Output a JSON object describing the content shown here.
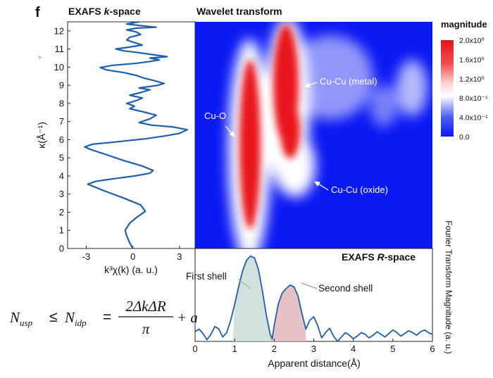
{
  "panel_label": "f",
  "equation": {
    "lhs": "N",
    "lhs_sub": "usp",
    "rel": "≤",
    "rhs": "N",
    "rhs_sub": "idp",
    "eq": "=",
    "numerator": "2ΔkΔR",
    "denominator": "π",
    "tail": "+ a"
  },
  "chart_data": [
    {
      "type": "line",
      "title": "EXAFS k-space",
      "title_parts": [
        "EXAFS ",
        "k",
        "-space"
      ],
      "xlabel": "k³χ(k) (a. u.)",
      "ylabel": "κ(Å⁻¹)",
      "xlim": [
        -4.2,
        4.0
      ],
      "ylim": [
        0,
        12.5
      ],
      "x_ticks": [
        "-3",
        "0",
        "3"
      ],
      "x_tick_values": [
        -3,
        0,
        3
      ],
      "y_ticks": [
        "0",
        "1",
        "2",
        "3",
        "4",
        "5",
        "6",
        "7",
        "8",
        "9",
        "10",
        "11",
        "12"
      ],
      "color": "#1f5fa8",
      "series": [
        {
          "points": [
            [
              0,
              0
            ],
            [
              -0.2,
              0.3
            ],
            [
              -0.4,
              0.7
            ],
            [
              -0.5,
              1.0
            ],
            [
              -0.2,
              1.4
            ],
            [
              0.3,
              1.75
            ],
            [
              0.8,
              2.05
            ],
            [
              0.5,
              2.4
            ],
            [
              -0.5,
              2.75
            ],
            [
              -1.9,
              3.2
            ],
            [
              -2.9,
              3.55
            ],
            [
              -2.4,
              3.7
            ],
            [
              -1.2,
              3.85
            ],
            [
              0.1,
              4.0
            ],
            [
              1.1,
              4.15
            ],
            [
              1.3,
              4.3
            ],
            [
              0.6,
              4.55
            ],
            [
              -0.6,
              4.85
            ],
            [
              -1.8,
              5.2
            ],
            [
              -2.7,
              5.45
            ],
            [
              -3.1,
              5.6
            ],
            [
              -2.6,
              5.75
            ],
            [
              -1.4,
              5.85
            ],
            [
              -0.3,
              5.95
            ],
            [
              0.8,
              6.05
            ],
            [
              2.0,
              6.2
            ],
            [
              3.0,
              6.35
            ],
            [
              3.5,
              6.55
            ],
            [
              2.6,
              6.7
            ],
            [
              1.2,
              6.8
            ],
            [
              0.4,
              6.95
            ],
            [
              1.1,
              7.15
            ],
            [
              1.5,
              7.35
            ],
            [
              0.6,
              7.55
            ],
            [
              -0.2,
              7.7
            ],
            [
              0.1,
              7.85
            ],
            [
              -0.4,
              8.0
            ],
            [
              0.2,
              8.15
            ],
            [
              0.6,
              8.3
            ],
            [
              -0.2,
              8.45
            ],
            [
              0.5,
              8.6
            ],
            [
              1.1,
              8.75
            ],
            [
              0.4,
              8.85
            ],
            [
              1.6,
              9.0
            ],
            [
              2.0,
              9.1
            ],
            [
              1.4,
              9.25
            ],
            [
              0.7,
              9.4
            ],
            [
              0.2,
              9.55
            ],
            [
              -0.6,
              9.7
            ],
            [
              -1.7,
              9.85
            ],
            [
              -2.1,
              9.98
            ],
            [
              -1.3,
              10.1
            ],
            [
              0.1,
              10.2
            ],
            [
              1.0,
              10.3
            ],
            [
              1.7,
              10.4
            ],
            [
              1.1,
              10.5
            ],
            [
              2.2,
              10.58
            ],
            [
              1.2,
              10.7
            ],
            [
              0.2,
              10.82
            ],
            [
              -0.6,
              10.9
            ],
            [
              -1.1,
              11.0
            ],
            [
              -0.3,
              11.1
            ],
            [
              0.6,
              11.22
            ],
            [
              0.1,
              11.35
            ],
            [
              -0.4,
              11.5
            ],
            [
              -0.2,
              11.65
            ],
            [
              0.5,
              11.8
            ],
            [
              0.2,
              11.95
            ],
            [
              -0.4,
              12.05
            ],
            [
              0.2,
              12.15
            ],
            [
              1.5,
              12.2
            ],
            [
              0.6,
              12.28
            ],
            [
              -0.4,
              12.38
            ],
            [
              0.4,
              12.5
            ]
          ]
        }
      ]
    },
    {
      "type": "heatmap",
      "title": "Wavelet transform",
      "colorbar_title": "magnitude",
      "colorbar_ticks": [
        "2.0x10⁰",
        "1.6x10⁰",
        "1.2x10⁰",
        "8.0x10⁻¹",
        "4.0x10⁻¹",
        "0.0"
      ],
      "colorbar_values": [
        2.0,
        1.6,
        1.2,
        0.8,
        0.4,
        0.0
      ],
      "colors": {
        "low": "#0a18f2",
        "mid": "#ffffff",
        "high": "#e8121a"
      },
      "xlim": [
        0,
        6
      ],
      "ylim": [
        0,
        12.5
      ],
      "annotations": [
        "Cu-O",
        "Cu-Cu (metal)",
        "Cu-Cu (oxide)"
      ]
    },
    {
      "type": "line",
      "title": "EXAFS R-space",
      "title_parts": [
        "EXAFS ",
        "R",
        "-space"
      ],
      "xlabel": "Apparent distance(Å)",
      "ylabel": "Fourier Transform Magnitude (a. u.)",
      "xlim": [
        0,
        6
      ],
      "x_ticks": [
        "0",
        "1",
        "2",
        "3",
        "4",
        "5",
        "6"
      ],
      "x_tick_values": [
        0,
        1,
        2,
        3,
        4,
        5,
        6
      ],
      "ylim": [
        0,
        1
      ],
      "color": "#1f5fa8",
      "annotations": [
        "First shell",
        "Second shell"
      ],
      "shaded_regions": [
        {
          "label": "First shell",
          "x_range": [
            0.95,
            1.9
          ],
          "color": "#c9ddd8"
        },
        {
          "label": "Second shell",
          "x_range": [
            1.9,
            2.8
          ],
          "color": "#e2b6bb"
        }
      ],
      "series": [
        {
          "points": [
            [
              0,
              0.11
            ],
            [
              0.1,
              0.14
            ],
            [
              0.2,
              0.09
            ],
            [
              0.3,
              0.02
            ],
            [
              0.4,
              0.08
            ],
            [
              0.5,
              0.17
            ],
            [
              0.6,
              0.14
            ],
            [
              0.7,
              0.05
            ],
            [
              0.8,
              0.1
            ],
            [
              0.9,
              0.24
            ],
            [
              1.0,
              0.42
            ],
            [
              1.1,
              0.62
            ],
            [
              1.2,
              0.8
            ],
            [
              1.3,
              0.92
            ],
            [
              1.4,
              0.97
            ],
            [
              1.5,
              0.95
            ],
            [
              1.6,
              0.82
            ],
            [
              1.7,
              0.58
            ],
            [
              1.8,
              0.3
            ],
            [
              1.9,
              0.08
            ],
            [
              1.95,
              0.03
            ],
            [
              2.0,
              0.18
            ],
            [
              2.1,
              0.42
            ],
            [
              2.2,
              0.55
            ],
            [
              2.3,
              0.6
            ],
            [
              2.4,
              0.64
            ],
            [
              2.5,
              0.62
            ],
            [
              2.6,
              0.52
            ],
            [
              2.7,
              0.32
            ],
            [
              2.8,
              0.14
            ],
            [
              2.9,
              0.24
            ],
            [
              3.0,
              0.28
            ],
            [
              3.1,
              0.18
            ],
            [
              3.2,
              0.04
            ],
            [
              3.3,
              0.1
            ],
            [
              3.4,
              0.15
            ],
            [
              3.5,
              0.06
            ],
            [
              3.6,
              0.0
            ],
            [
              3.7,
              0.05
            ],
            [
              3.8,
              0.1
            ],
            [
              3.9,
              0.07
            ],
            [
              4.0,
              0.03
            ],
            [
              4.1,
              0.06
            ],
            [
              4.2,
              0.1
            ],
            [
              4.3,
              0.08
            ],
            [
              4.4,
              0.04
            ],
            [
              4.5,
              0.07
            ],
            [
              4.6,
              0.11
            ],
            [
              4.7,
              0.08
            ],
            [
              4.8,
              0.05
            ],
            [
              4.9,
              0.09
            ],
            [
              5.0,
              0.13
            ],
            [
              5.1,
              0.1
            ],
            [
              5.2,
              0.06
            ],
            [
              5.3,
              0.09
            ],
            [
              5.4,
              0.12
            ],
            [
              5.5,
              0.1
            ],
            [
              5.6,
              0.07
            ],
            [
              5.7,
              0.11
            ],
            [
              5.8,
              0.13
            ],
            [
              5.9,
              0.1
            ],
            [
              6.0,
              0.08
            ]
          ]
        }
      ]
    }
  ]
}
